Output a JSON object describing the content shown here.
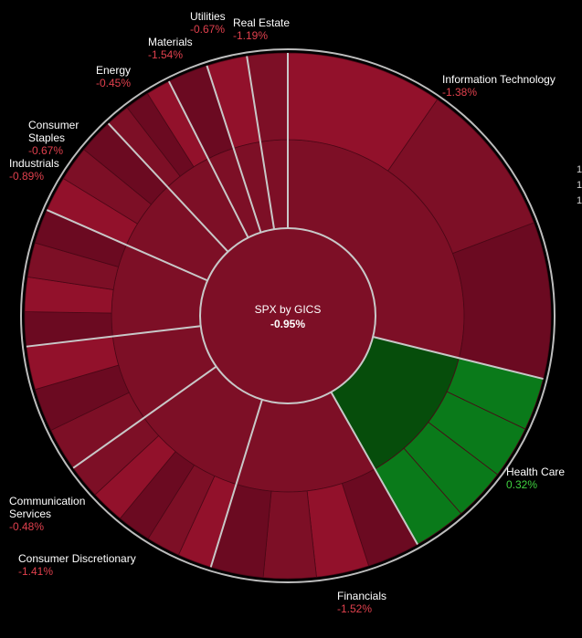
{
  "chart_data": {
    "type": "sunburst",
    "title": "SPX by GICS",
    "total_change": "-0.95%",
    "sectors": [
      {
        "name": "Information Technology",
        "change": "-1.38%",
        "value": -1.38,
        "weight": 29.0
      },
      {
        "name": "Health Care",
        "change": "0.32%",
        "value": 0.32,
        "weight": 13.0
      },
      {
        "name": "Financials",
        "change": "-1.52%",
        "value": -1.52,
        "weight": 13.0
      },
      {
        "name": "Consumer Discretionary",
        "change": "-1.41%",
        "value": -1.41,
        "weight": 10.5
      },
      {
        "name": "Communication Services",
        "change": "-0.48%",
        "value": -0.48,
        "weight": 8.0
      },
      {
        "name": "Industrials",
        "change": "-0.89%",
        "value": -0.89,
        "weight": 8.5
      },
      {
        "name": "Consumer Staples",
        "change": "-0.67%",
        "value": -0.67,
        "weight": 6.5
      },
      {
        "name": "Energy",
        "change": "-0.45%",
        "value": -0.45,
        "weight": 4.5
      },
      {
        "name": "Materials",
        "change": "-1.54%",
        "value": -1.54,
        "weight": 2.5
      },
      {
        "name": "Utilities",
        "change": "-0.67%",
        "value": -0.67,
        "weight": 2.5
      },
      {
        "name": "Real Estate",
        "change": "-1.19%",
        "value": -1.19,
        "weight": 2.5
      }
    ],
    "colors": {
      "negative_dark": "#6b0a21",
      "negative_mid": "#7d0f26",
      "negative_bright": "#92112b",
      "positive_dark": "#064d0b",
      "positive_bright": "#0a7a1a",
      "divider": "#c8c8c8"
    }
  },
  "edge_numbers": [
    "1",
    "1",
    "1"
  ]
}
